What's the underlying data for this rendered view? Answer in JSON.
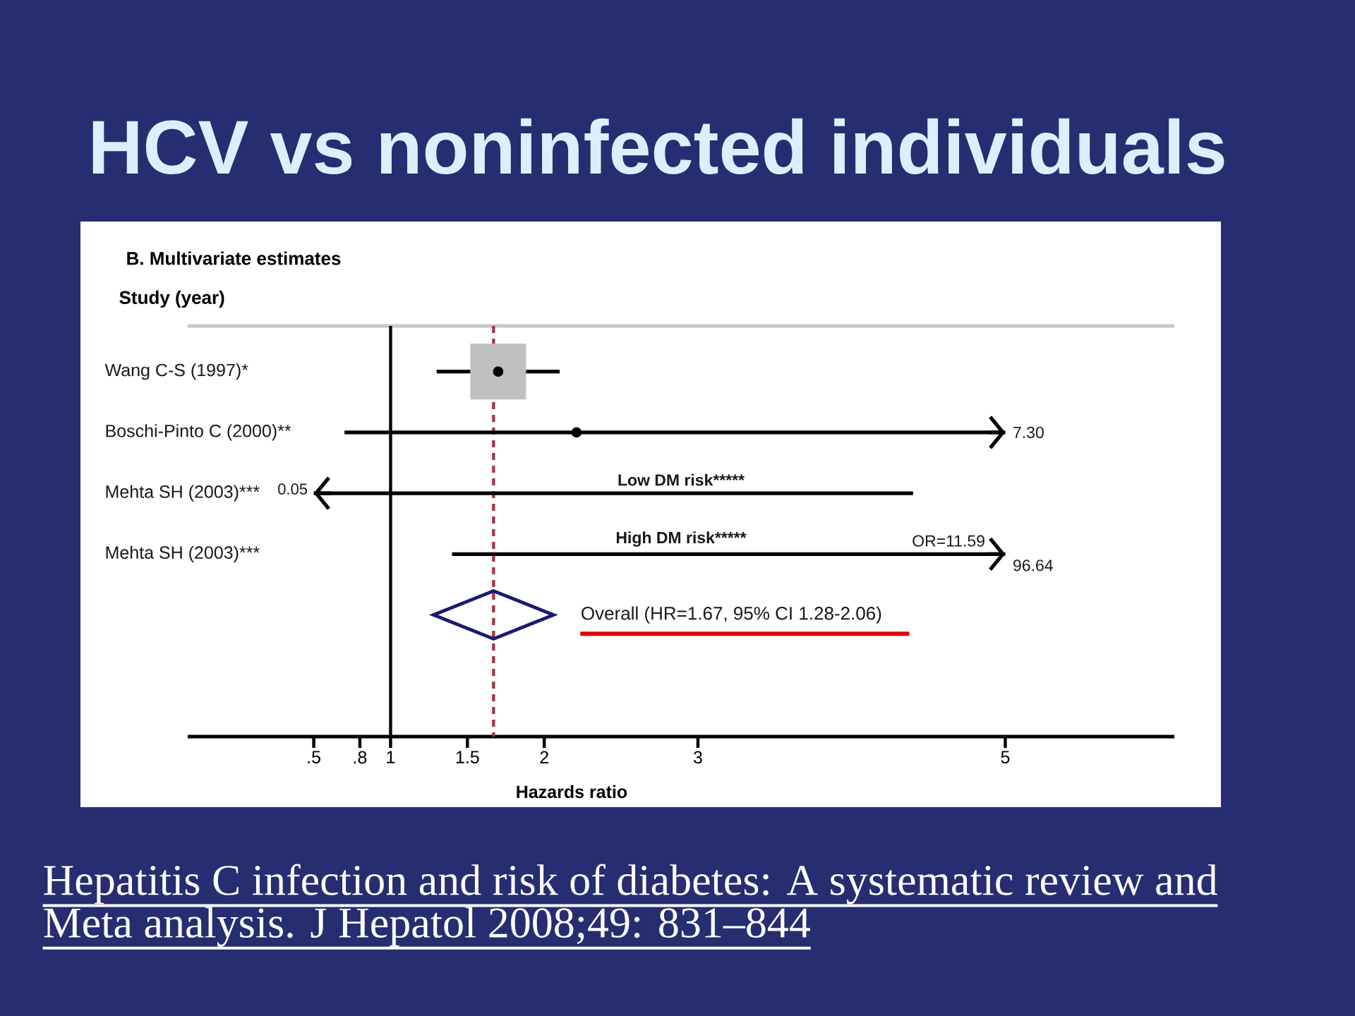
{
  "chart_data": {
    "type": "scatter",
    "orientation": "horizontal",
    "title": "HCV vs noninfected individuals",
    "subtitle": "B. Multivariate estimates",
    "xlabel": "Hazards ratio",
    "ylabel": "Study (year)",
    "categories": [
      "Wang C-S (1997)*",
      "Boschi-Pinto C (2000)**",
      "Mehta SH (2003)***",
      "Mehta SH (2003)***",
      null
    ],
    "series": [
      {
        "color": "#c0c0c0",
        "marker": "square",
        "values": [
          1.7,
          null,
          null,
          null,
          null
        ]
      },
      {
        "color": "#000000",
        "marker": "circle",
        "values": [
          1.7,
          2.21,
          null,
          null,
          null
        ],
        "errors": [
          [
            1.3,
            2.1
          ],
          [
            0.7,
            5
          ],
          null,
          null,
          null
        ]
      },
      {
        "type": "bar",
        "name": "Low DM risk*****",
        "color": "#000000",
        "base": [
          null,
          null,
          0.5,
          null,
          null
        ],
        "values": [
          null,
          null,
          3.9,
          null,
          null
        ]
      },
      {
        "type": "bar",
        "name": "High DM risk*****",
        "color": "#000000",
        "base": [
          null,
          null,
          null,
          1.4,
          null
        ],
        "values": [
          null,
          null,
          null,
          3.6,
          null
        ]
      }
    ],
    "xlim": [
      -0.32,
      6.1
    ],
    "xticks": [
      {
        "value": 0.5,
        "label": ".5"
      },
      {
        "value": 0.8,
        "label": ".8"
      },
      1,
      1.5,
      2,
      3,
      5
    ],
    "ref_lines": [
      {
        "axis": "x",
        "value": 1,
        "color": "#000000",
        "line_style": "solid"
      },
      {
        "axis": "x",
        "value": 1.67,
        "color": "#9e3a4a",
        "line_style": "dashed"
      }
    ],
    "annotations": [
      "Hepatitis C infection and risk of diabetes: A systematic review and Meta analysis. J Hepatol 2008;49: 831–844",
      "Overall (HR=1.67, 95% CI 1.28-2.06)",
      "7.30",
      "0.05",
      "96.64",
      "OR=11.59"
    ]
  }
}
